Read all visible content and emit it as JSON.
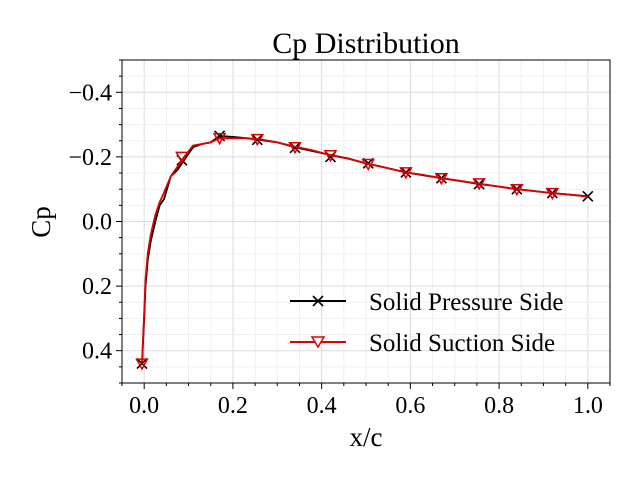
{
  "chart_data": {
    "type": "line",
    "title": "Cp Distribution",
    "xlabel": "x/c",
    "ylabel": "Cp",
    "xlim": [
      -0.05,
      1.05
    ],
    "ylim": [
      0.5,
      -0.5
    ],
    "y_inverted": true,
    "grid": true,
    "minor_grid": true,
    "legend_position": "lower-right",
    "x_ticks": [
      0.0,
      0.2,
      0.4,
      0.6,
      0.8,
      1.0
    ],
    "x_tick_labels": [
      "0.0",
      "0.2",
      "0.4",
      "0.6",
      "0.8",
      "1.0"
    ],
    "y_ticks": [
      -0.4,
      -0.2,
      0.0,
      0.2,
      0.4
    ],
    "y_tick_labels": [
      "−0.4",
      "−0.2",
      "0.0",
      "0.2",
      "0.4"
    ],
    "series": [
      {
        "name": "Solid Pressure Side",
        "color": "#000000",
        "marker": "x",
        "x": [
          -0.005,
          0.0,
          0.003,
          0.008,
          0.015,
          0.025,
          0.035,
          0.045,
          0.06,
          0.075,
          0.09,
          0.11,
          0.13,
          0.15,
          0.17,
          0.2,
          0.23,
          0.26,
          0.3,
          0.34,
          0.38,
          0.42,
          0.46,
          0.5,
          0.54,
          0.59,
          0.63,
          0.67,
          0.71,
          0.75,
          0.79,
          0.84,
          0.88,
          0.92,
          0.96,
          1.0
        ],
        "y": [
          0.44,
          0.3,
          0.2,
          0.12,
          0.06,
          0.0,
          -0.05,
          -0.07,
          -0.14,
          -0.16,
          -0.19,
          -0.23,
          -0.24,
          -0.245,
          -0.265,
          -0.262,
          -0.258,
          -0.253,
          -0.245,
          -0.23,
          -0.218,
          -0.206,
          -0.195,
          -0.18,
          -0.168,
          -0.152,
          -0.143,
          -0.134,
          -0.126,
          -0.117,
          -0.11,
          -0.1,
          -0.094,
          -0.088,
          -0.083,
          -0.078
        ],
        "marker_x": [
          -0.005,
          0.085,
          0.17,
          0.255,
          0.34,
          0.42,
          0.505,
          0.59,
          0.67,
          0.755,
          0.84,
          0.92,
          1.0
        ],
        "marker_y": [
          0.44,
          -0.19,
          -0.265,
          -0.253,
          -0.228,
          -0.2,
          -0.18,
          -0.152,
          -0.134,
          -0.116,
          -0.1,
          -0.088,
          -0.078
        ]
      },
      {
        "name": "Solid Suction Side",
        "color": "#e00000",
        "marker": "triangle-down",
        "x": [
          -0.005,
          0.0,
          0.003,
          0.008,
          0.015,
          0.025,
          0.035,
          0.045,
          0.06,
          0.075,
          0.09,
          0.11,
          0.13,
          0.15,
          0.17,
          0.2,
          0.23,
          0.26,
          0.3,
          0.34,
          0.38,
          0.42,
          0.46,
          0.5,
          0.54,
          0.59,
          0.63,
          0.67,
          0.71,
          0.75,
          0.79,
          0.84,
          0.88,
          0.92,
          0.96,
          1.0
        ],
        "y": [
          0.44,
          0.28,
          0.18,
          0.1,
          0.04,
          -0.02,
          -0.06,
          -0.09,
          -0.14,
          -0.17,
          -0.2,
          -0.235,
          -0.24,
          -0.245,
          -0.258,
          -0.258,
          -0.258,
          -0.255,
          -0.245,
          -0.232,
          -0.22,
          -0.205,
          -0.194,
          -0.18,
          -0.168,
          -0.152,
          -0.144,
          -0.134,
          -0.126,
          -0.118,
          -0.11,
          -0.1,
          -0.094,
          -0.088,
          -0.083,
          -0.077
        ],
        "marker_x": [
          -0.005,
          0.085,
          0.17,
          0.255,
          0.34,
          0.42,
          0.505,
          0.59,
          0.67,
          0.755,
          0.84,
          0.92
        ],
        "marker_y": [
          0.44,
          -0.2,
          -0.258,
          -0.255,
          -0.23,
          -0.205,
          -0.178,
          -0.152,
          -0.134,
          -0.118,
          -0.1,
          -0.088
        ]
      }
    ]
  }
}
